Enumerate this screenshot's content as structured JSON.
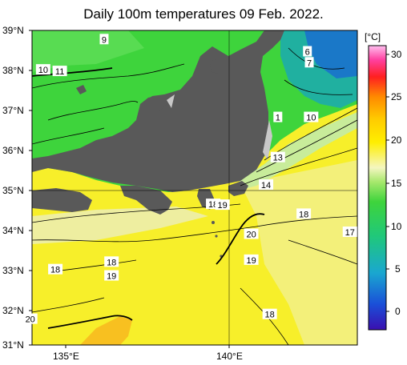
{
  "title": "Daily 100m temperatures 09 Feb. 2022.",
  "lat_labels": [
    "39°N",
    "38°N",
    "37°N",
    "36°N",
    "35°N",
    "34°N",
    "33°N",
    "32°N",
    "31°N"
  ],
  "lon_labels": [
    "135°E",
    "140°E"
  ],
  "colorbar": {
    "unit": "[°C]",
    "ticks": [
      "30",
      "25",
      "20",
      "15",
      "10",
      "5",
      "0"
    ],
    "min": -3,
    "max": 31
  },
  "contour_labels": [
    {
      "text": "9",
      "lon": 136.1,
      "lat": 38.77
    },
    {
      "text": "10",
      "lon": 134.45,
      "lat": 38.0
    },
    {
      "text": "11",
      "lon": 134.9,
      "lat": 37.96
    },
    {
      "text": "6",
      "lon": 141.6,
      "lat": 38.46
    },
    {
      "text": "7",
      "lon": 141.65,
      "lat": 38.18
    },
    {
      "text": "1",
      "lon": 140.8,
      "lat": 36.79
    },
    {
      "text": "10",
      "lon": 141.7,
      "lat": 36.79
    },
    {
      "text": "13",
      "lon": 140.8,
      "lat": 35.77
    },
    {
      "text": "14",
      "lon": 140.48,
      "lat": 35.07
    },
    {
      "text": "18",
      "lon": 139.05,
      "lat": 34.58
    },
    {
      "text": "19",
      "lon": 139.3,
      "lat": 34.56
    },
    {
      "text": "18",
      "lon": 141.5,
      "lat": 34.33
    },
    {
      "text": "20",
      "lon": 140.08,
      "lat": 33.82
    },
    {
      "text": "17",
      "lon": 142.75,
      "lat": 33.87
    },
    {
      "text": "18",
      "lon": 136.3,
      "lat": 33.11
    },
    {
      "text": "19",
      "lon": 140.08,
      "lat": 33.16
    },
    {
      "text": "18",
      "lon": 134.78,
      "lat": 32.92
    },
    {
      "text": "19",
      "lon": 136.3,
      "lat": 32.76
    },
    {
      "text": "18",
      "lon": 140.58,
      "lat": 31.78
    },
    {
      "text": "20",
      "lon": 134.1,
      "lat": 31.66
    }
  ]
}
